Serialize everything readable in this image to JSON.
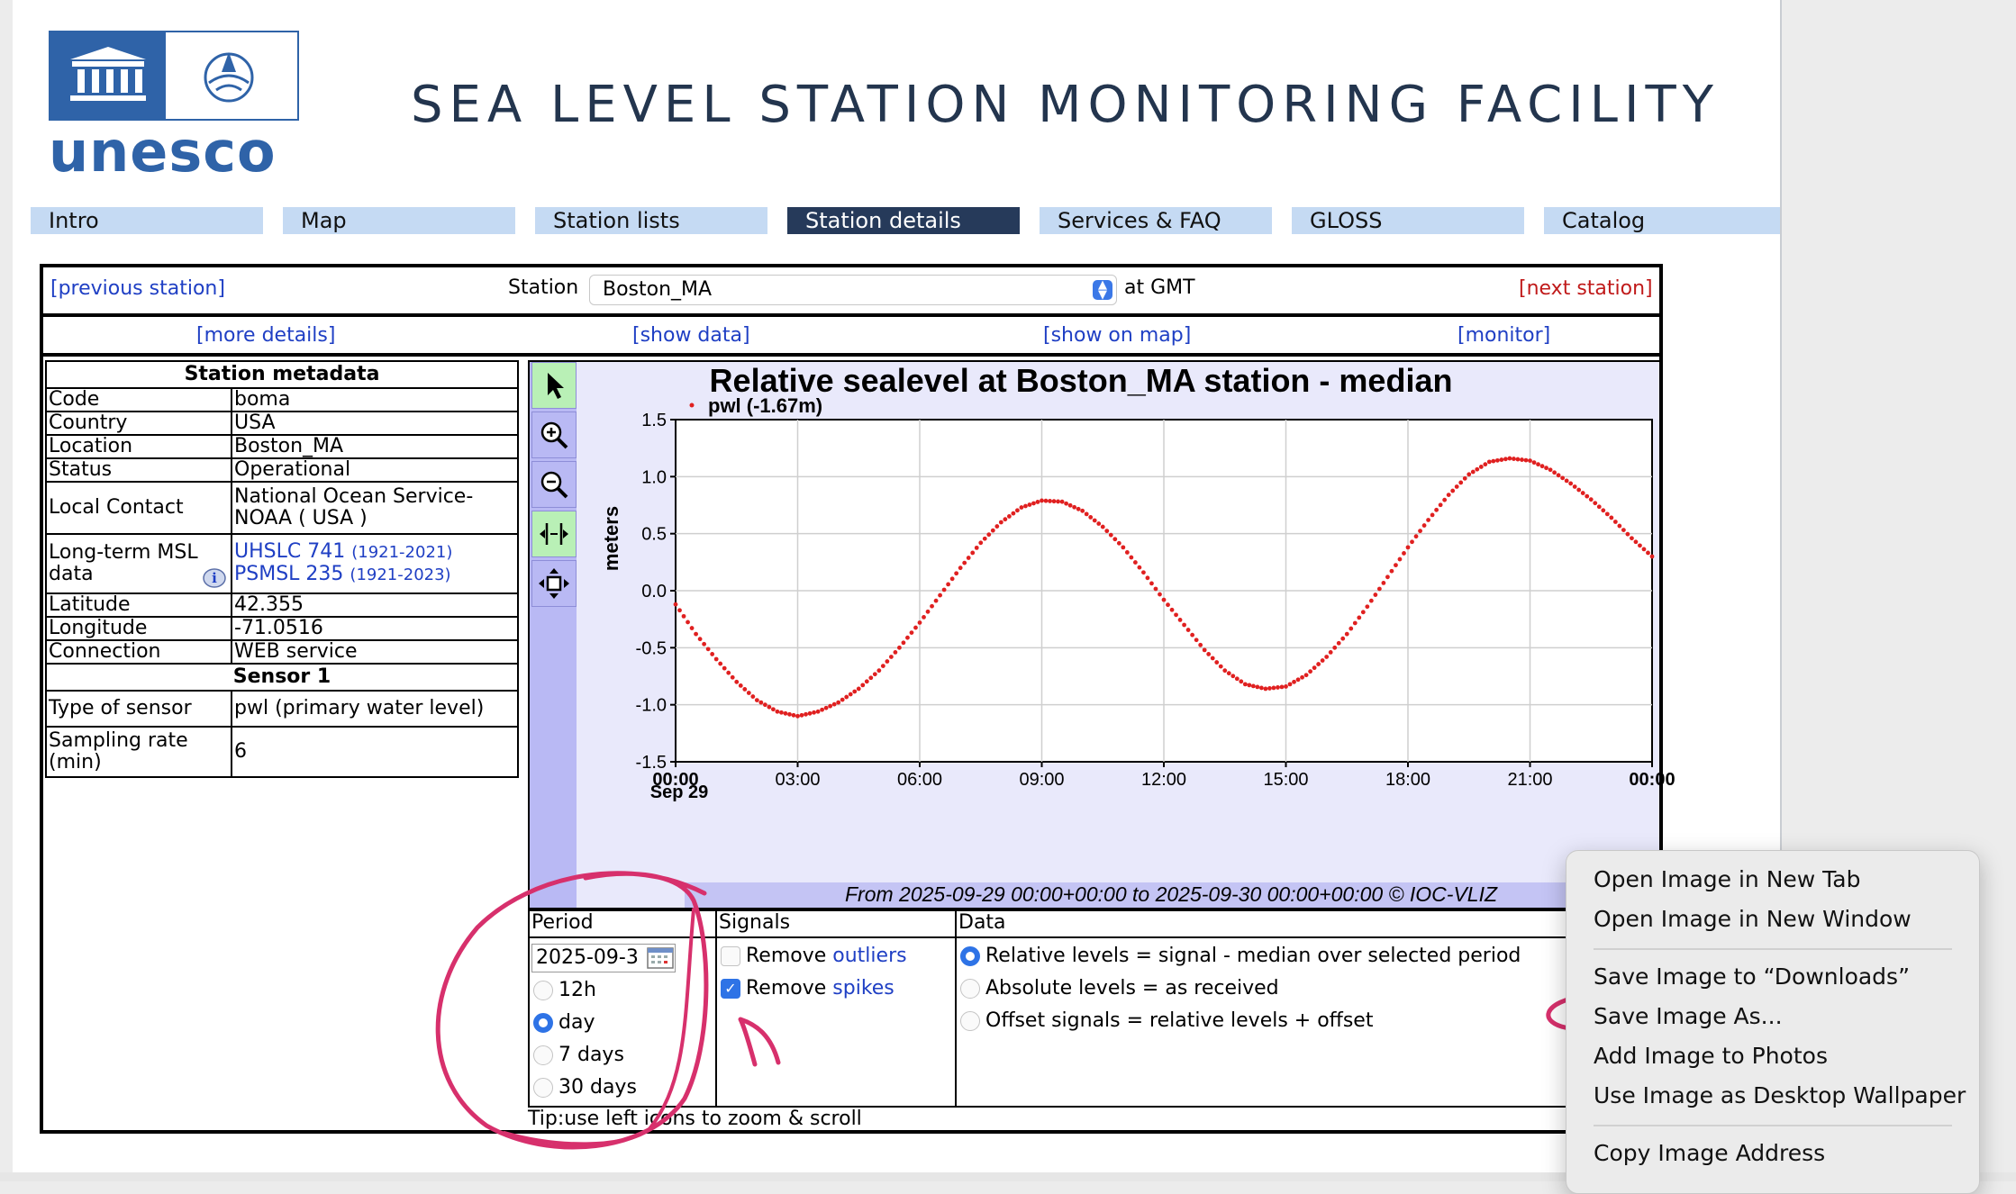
{
  "header": {
    "logo_text": "unesco",
    "title": "SEA LEVEL STATION MONITORING FACILITY"
  },
  "nav": {
    "tabs": [
      {
        "label": "Intro",
        "active": false
      },
      {
        "label": "Map",
        "active": false
      },
      {
        "label": "Station lists",
        "active": false
      },
      {
        "label": "Station details",
        "active": true
      },
      {
        "label": "Services & FAQ",
        "active": false
      },
      {
        "label": "GLOSS",
        "active": false
      },
      {
        "label": "Catalog",
        "active": false
      }
    ]
  },
  "station_bar": {
    "previous": "[previous station]",
    "station_label": "Station",
    "station_value": "Boston_MA",
    "at_gmt": "at GMT",
    "next": "[next station]"
  },
  "links_bar": {
    "more_details": "[more details]",
    "show_data": "[show data]",
    "show_on_map": "[show on map]",
    "monitor": "[monitor]"
  },
  "metadata": {
    "heading": "Station metadata",
    "code_label": "Code",
    "code": "boma",
    "country_label": "Country",
    "country": "USA",
    "location_label": "Location",
    "location": "Boston_MA",
    "status_label": "Status",
    "status": "Operational",
    "contact_label": "Local Contact",
    "contact": "National Ocean Service-NOAA ( USA )",
    "msl_label": "Long-term MSL data",
    "uhslc": "UHSLC 741",
    "uhslc_years": "(1921-2021)",
    "psmsl": "PSMSL 235",
    "psmsl_years": "(1921-2023)",
    "latitude_label": "Latitude",
    "latitude": "42.355",
    "longitude_label": "Longitude",
    "longitude": "-71.0516",
    "connection_label": "Connection",
    "connection": "WEB service",
    "sensor_heading": "Sensor 1",
    "sensor_type_label": "Type of sensor",
    "sensor_type": "pwl (primary water level)",
    "sampling_label": "Sampling rate (min)",
    "sampling": "6"
  },
  "chart_data": {
    "type": "scatter",
    "title": "Relative sealevel at Boston_MA station - median",
    "legend": "pwl (-1.67m)",
    "legend_position": "top-left",
    "ylabel": "meters",
    "xlabel": "",
    "ylim": [
      -1.5,
      1.5
    ],
    "yticks": [
      "1.5",
      "1.0",
      "0.5",
      "0.0",
      "-0.5",
      "-1.0",
      "-1.5"
    ],
    "xlim_hours": [
      0,
      24
    ],
    "xticks": [
      "00:00",
      "03:00",
      "06:00",
      "09:00",
      "12:00",
      "15:00",
      "18:00",
      "21:00",
      "00:00"
    ],
    "x_date_label": "Sep 29",
    "grid": true,
    "color": "#e02020",
    "series": [
      {
        "name": "pwl (-1.67m)",
        "x_hours": [
          0,
          0.5,
          1,
          1.5,
          2,
          2.5,
          3,
          3.5,
          4,
          4.5,
          5,
          5.5,
          6,
          6.5,
          7,
          7.5,
          8,
          8.5,
          9,
          9.5,
          10,
          10.5,
          11,
          11.5,
          12,
          12.5,
          13,
          13.5,
          14,
          14.5,
          15,
          15.5,
          16,
          16.5,
          17,
          17.5,
          18,
          18.5,
          19,
          19.5,
          20,
          20.5,
          21,
          21.5,
          22,
          22.5,
          23,
          23.5,
          24
        ],
        "y": [
          -0.12,
          -0.38,
          -0.6,
          -0.8,
          -0.96,
          -1.06,
          -1.1,
          -1.06,
          -0.98,
          -0.86,
          -0.7,
          -0.5,
          -0.28,
          -0.04,
          0.2,
          0.42,
          0.6,
          0.73,
          0.79,
          0.78,
          0.7,
          0.56,
          0.38,
          0.16,
          -0.08,
          -0.3,
          -0.52,
          -0.7,
          -0.82,
          -0.86,
          -0.84,
          -0.74,
          -0.58,
          -0.38,
          -0.14,
          0.12,
          0.38,
          0.62,
          0.84,
          1.02,
          1.13,
          1.16,
          1.14,
          1.06,
          0.94,
          0.8,
          0.64,
          0.46,
          0.3
        ]
      }
    ],
    "footer": "From 2025-09-29 00:00+00:00 to 2025-09-30 00:00+00:00 © IOC-VLIZ"
  },
  "controls": {
    "period": {
      "title": "Period",
      "date": "2025-09-3",
      "options": [
        "12h",
        "day",
        "7 days",
        "30 days"
      ],
      "selected": "day"
    },
    "signals": {
      "title": "Signals",
      "remove_prefix": "Remove",
      "outliers": "outliers",
      "spikes": "spikes",
      "outliers_checked": false,
      "spikes_checked": true
    },
    "data": {
      "title": "Data",
      "options": [
        "Relative levels = signal - median over selected period",
        "Absolute levels = as received",
        "Offset signals = relative levels + offset"
      ],
      "selected": "Relative levels = signal - median over selected period"
    },
    "tip": "Tip:use left icons to zoom & scroll"
  },
  "context_menu": {
    "items": [
      "Open Image in New Tab",
      "Open Image in New Window",
      "Save Image to “Downloads”",
      "Save Image As...",
      "Add Image to Photos",
      "Use Image as Desktop Wallpaper",
      "Copy Image Address"
    ]
  },
  "colors": {
    "accent": "#2f63a8",
    "nav_bg": "#c5daf3",
    "nav_active": "#263a5a",
    "annotation": "#d7306c",
    "link": "#1f3fc4"
  }
}
